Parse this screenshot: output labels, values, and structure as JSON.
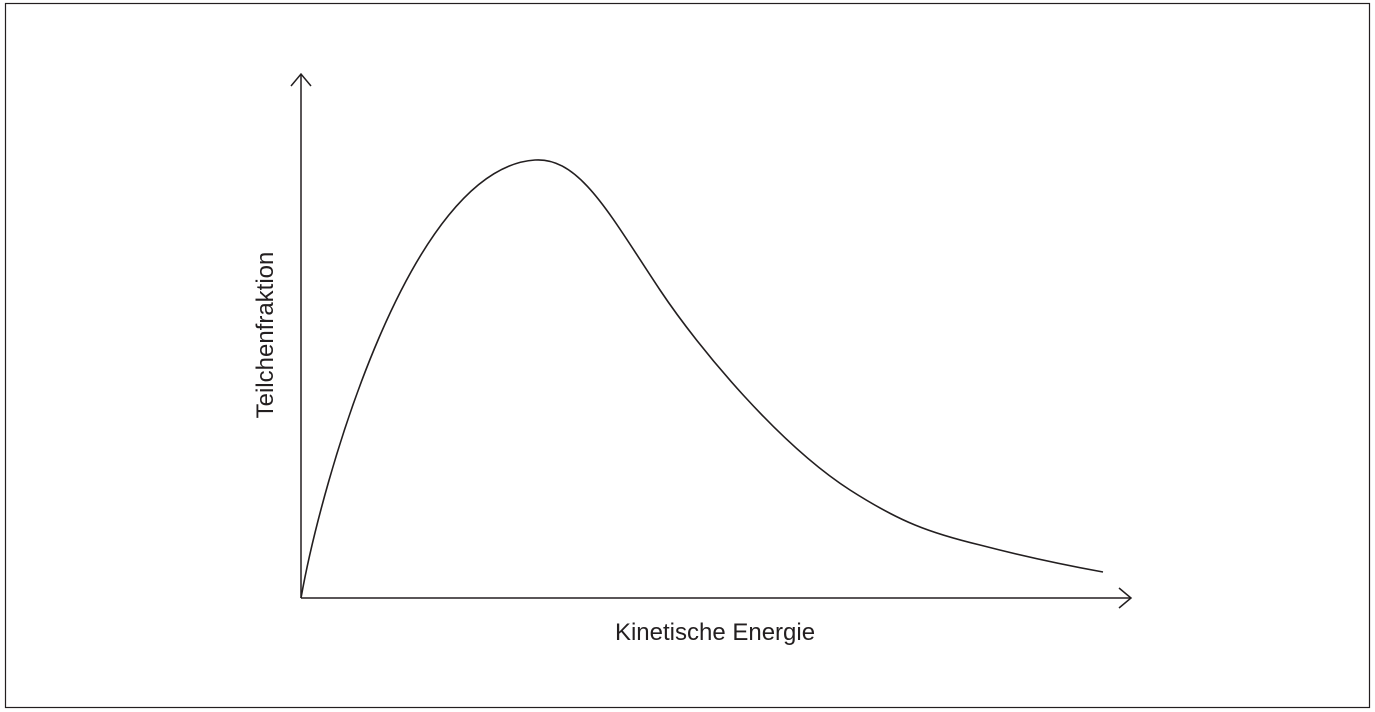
{
  "axes": {
    "x_label": "Kinetische Energie",
    "y_label": "Teilchenfraktion"
  }
}
